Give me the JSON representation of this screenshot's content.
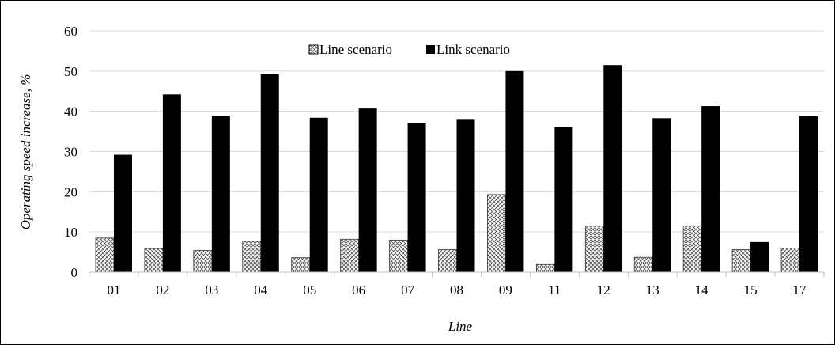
{
  "chart_data": {
    "type": "bar",
    "categories": [
      "01",
      "02",
      "03",
      "04",
      "05",
      "06",
      "07",
      "08",
      "09",
      "11",
      "12",
      "13",
      "14",
      "15",
      "17"
    ],
    "series": [
      {
        "name": "Line scenario",
        "values": [
          8.5,
          5.9,
          5.4,
          7.7,
          3.6,
          8.2,
          8.0,
          5.6,
          19.3,
          1.9,
          11.5,
          3.7,
          11.5,
          5.6,
          6.0
        ],
        "fill": "crosshatch"
      },
      {
        "name": "Link scenario",
        "values": [
          29.2,
          44.2,
          38.9,
          49.2,
          38.4,
          40.7,
          37.1,
          37.9,
          50.0,
          36.2,
          51.5,
          38.3,
          41.3,
          7.5,
          38.8
        ],
        "fill": "#000000"
      }
    ],
    "xlabel": "Line",
    "ylabel": "Operating speed increase, %",
    "ylim": [
      0,
      60
    ],
    "yticks": [
      0,
      10,
      20,
      30,
      40,
      50,
      60
    ],
    "grid": true,
    "legend_position": "top-center"
  }
}
